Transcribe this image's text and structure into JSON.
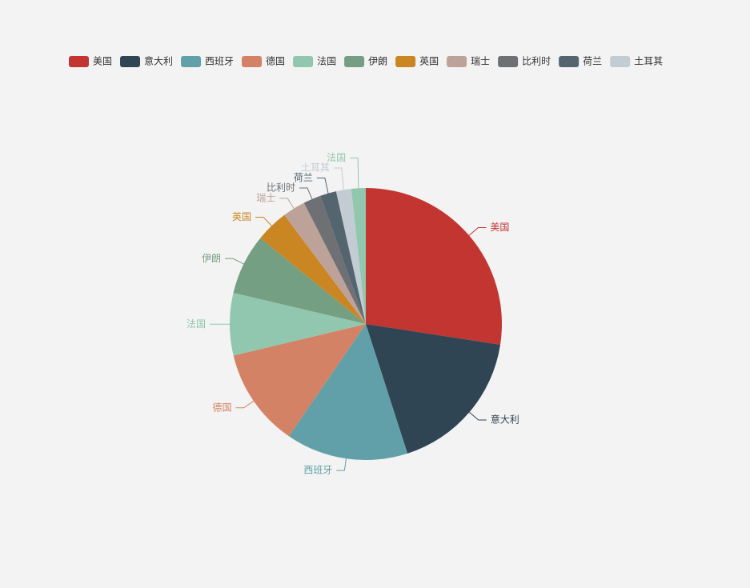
{
  "chart_data": {
    "type": "pie",
    "categories": [
      "美国",
      "意大利",
      "西班牙",
      "德国",
      "法国",
      "伊朗",
      "英国",
      "瑞士",
      "比利时",
      "荷兰",
      "土耳其",
      "法国"
    ],
    "values": [
      274,
      176,
      145,
      117,
      74,
      72,
      39,
      27,
      21,
      19,
      18,
      17
    ],
    "colors": [
      "#c23531",
      "#2f4554",
      "#61a0a8",
      "#d48265",
      "#91c7ae",
      "#749f83",
      "#ca8622",
      "#bda29a",
      "#6e7074",
      "#546570",
      "#c4ccd3",
      "#91c7ae"
    ],
    "legend_position": "top"
  }
}
